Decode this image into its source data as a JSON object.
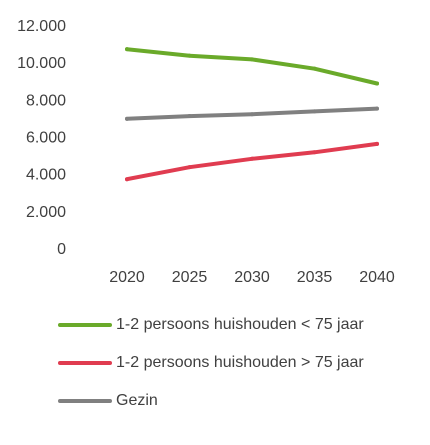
{
  "chart_data": {
    "type": "line",
    "title": "",
    "xlabel": "",
    "ylabel": "",
    "x": [
      2020,
      2025,
      2030,
      2035,
      2040
    ],
    "ylim": [
      0,
      12000
    ],
    "y_ticks": [
      "0",
      "2.000",
      "4.000",
      "6.000",
      "8.000",
      "10.000",
      "12.000"
    ],
    "y_tick_values": [
      0,
      2000,
      4000,
      6000,
      8000,
      10000,
      12000
    ],
    "x_ticks": [
      "2020",
      "2025",
      "2030",
      "2035",
      "2040"
    ],
    "grid": false,
    "legend_position": "bottom",
    "series": [
      {
        "name": "1-2 persoons huishouden < 75 jaar",
        "color": "#6aaa2a",
        "values": [
          10700,
          10350,
          10150,
          9650,
          8850
        ]
      },
      {
        "name": "1-2 persoons huishouden > 75 jaar",
        "color": "#e03c50",
        "values": [
          3700,
          4350,
          4800,
          5150,
          5600
        ]
      },
      {
        "name": "Gezin",
        "color": "#808080",
        "values": [
          6950,
          7100,
          7200,
          7350,
          7500
        ]
      }
    ]
  }
}
